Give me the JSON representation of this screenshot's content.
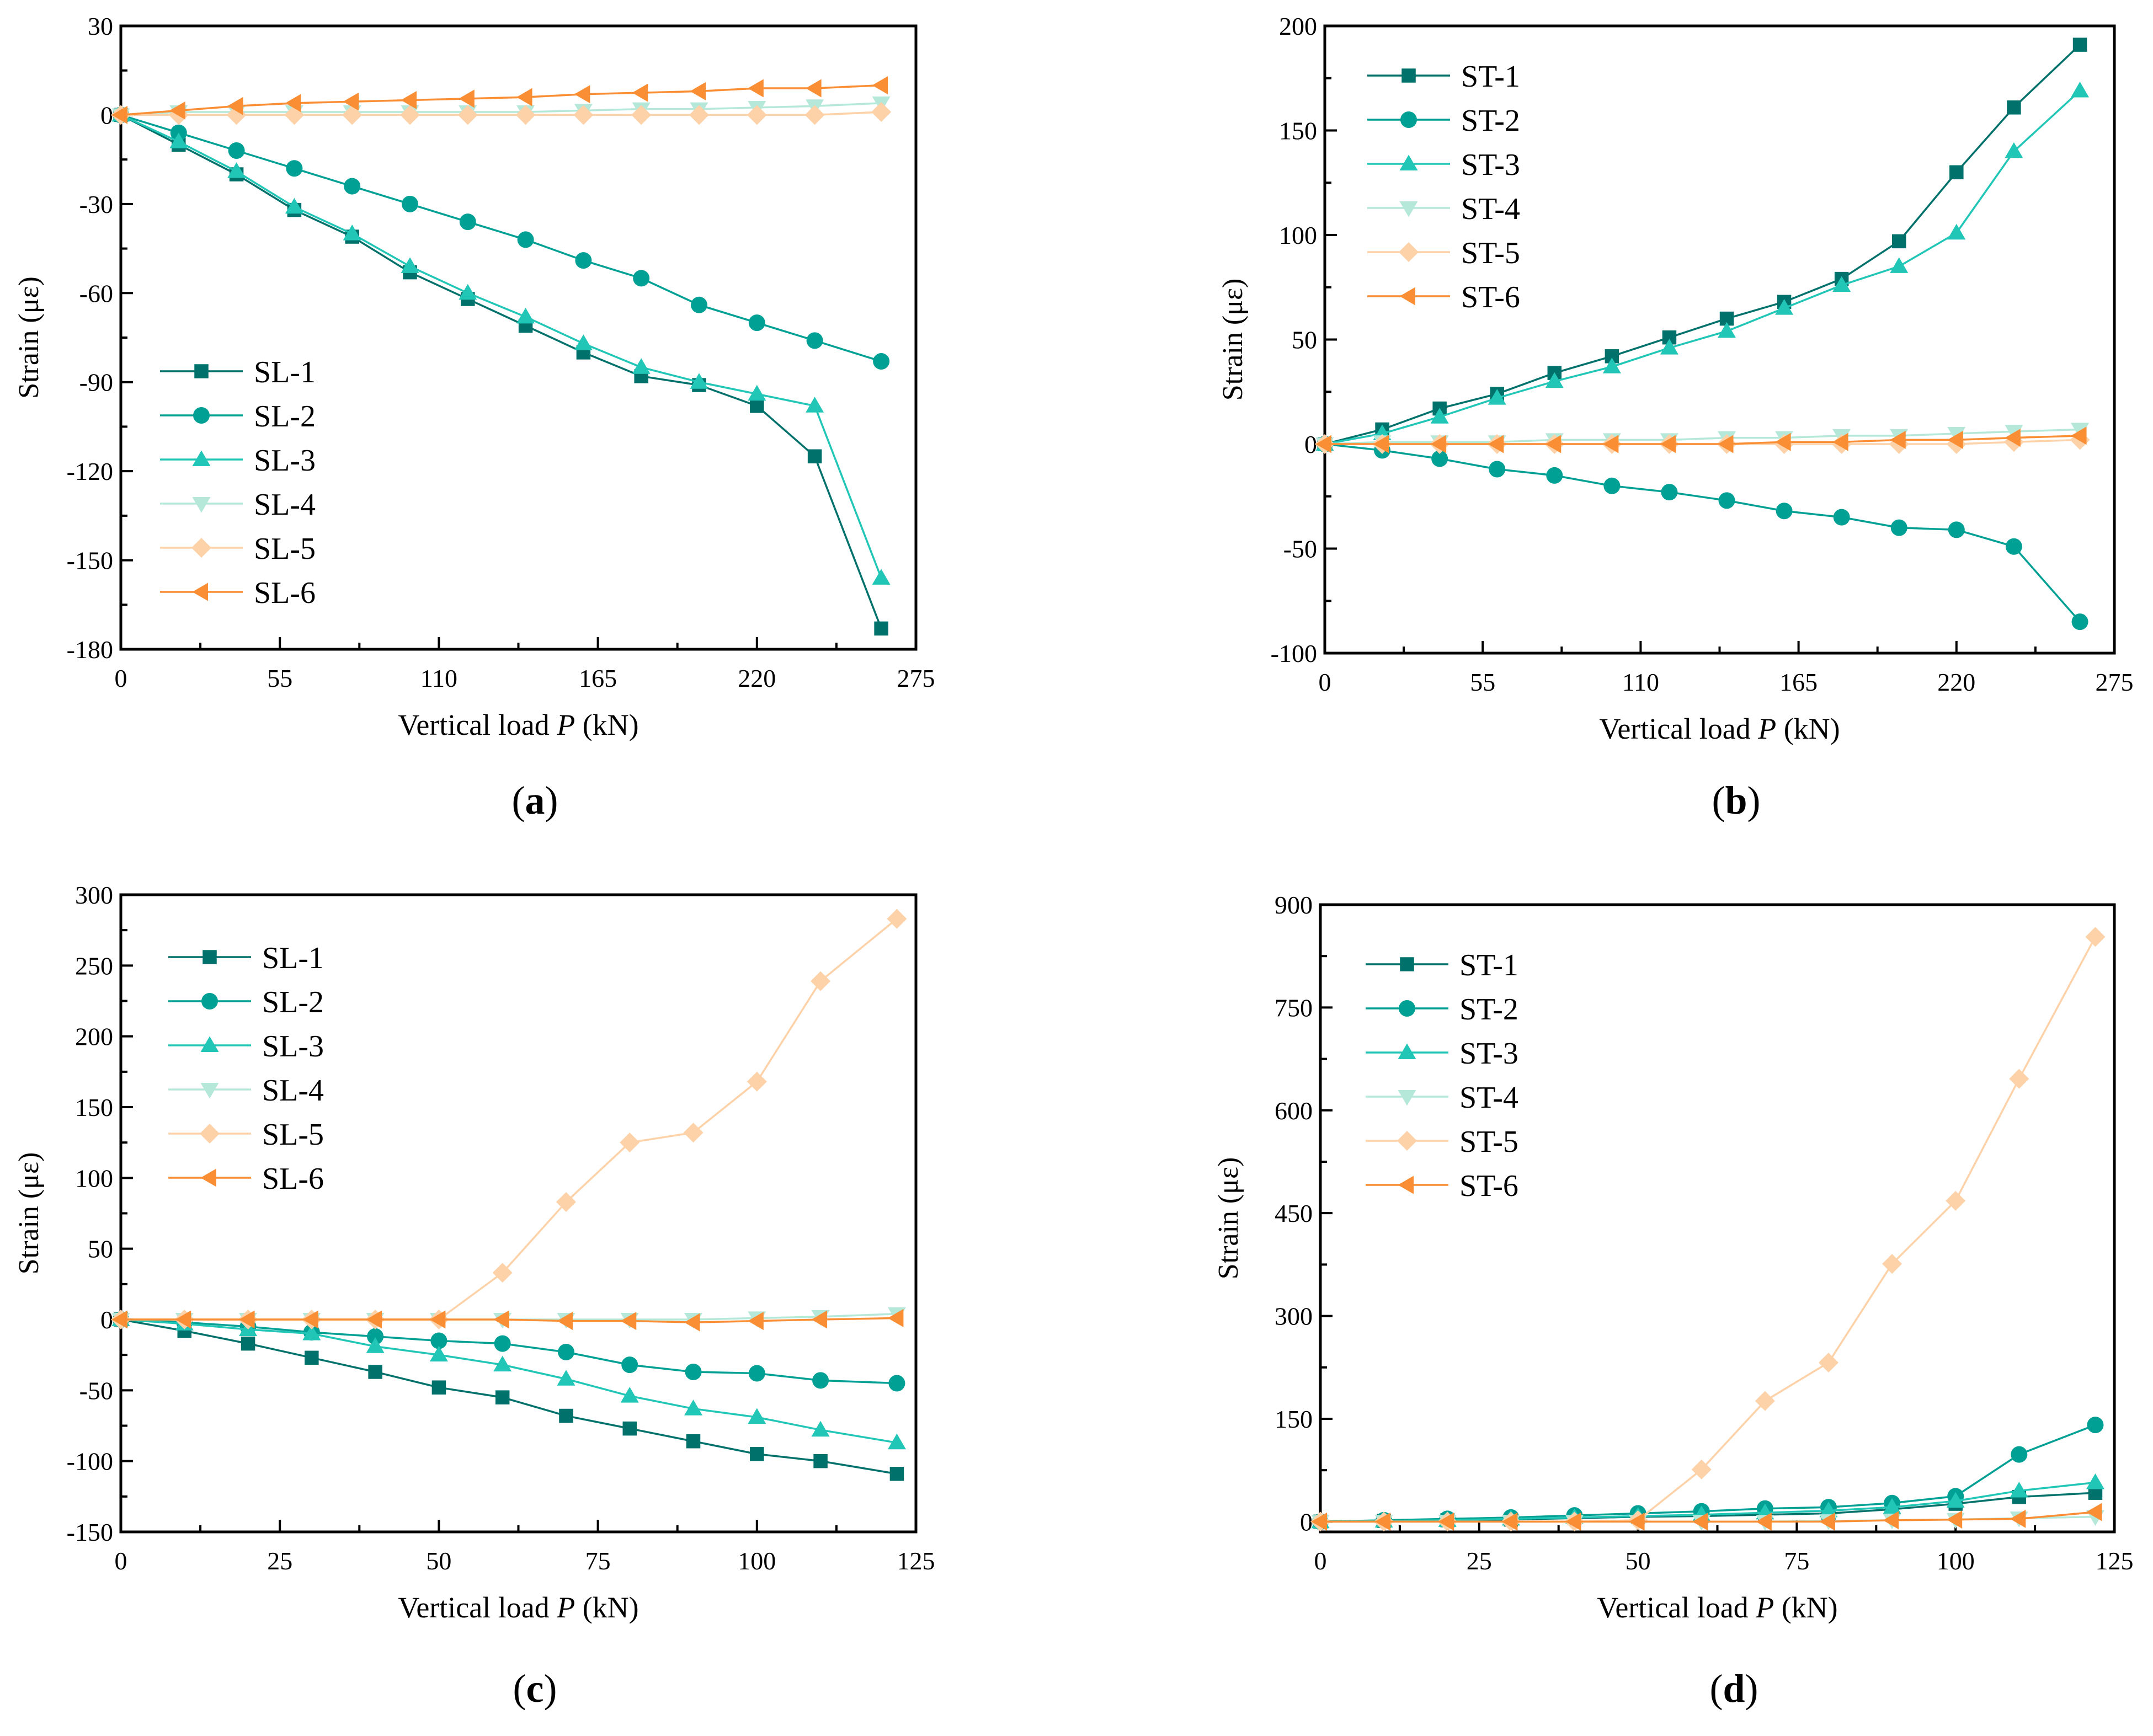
{
  "colors": {
    "s1": "#00716b",
    "s2": "#00a095",
    "s3": "#22c6b6",
    "s4": "#b6e8da",
    "s5": "#fdd2a8",
    "s6": "#f98e35"
  },
  "chart_data": [
    {
      "type": "line",
      "panel_label": "(a)",
      "panel_letter": "a",
      "xlabel_pre": "Vertical load ",
      "xlabel_var": "P",
      "xlabel_post": " (kN)",
      "ylabel": "Strain (με)",
      "xlim": [
        0,
        275
      ],
      "ylim": [
        -180,
        30
      ],
      "xticks": [
        0,
        55,
        110,
        165,
        220,
        275
      ],
      "yticks": [
        -180,
        -150,
        -120,
        -90,
        -60,
        -30,
        0,
        30
      ],
      "legend_position": "lower-left",
      "x": [
        0,
        20,
        40,
        60,
        80,
        100,
        120,
        140,
        160,
        180,
        200,
        220,
        240,
        263
      ],
      "series": [
        {
          "name": "SL-1",
          "marker": "square",
          "values": [
            0,
            -10,
            -20,
            -32,
            -41,
            -53,
            -62,
            -71,
            -80,
            -88,
            -91,
            -98,
            -115,
            -173
          ]
        },
        {
          "name": "SL-2",
          "marker": "circle",
          "values": [
            0,
            -6,
            -12,
            -18,
            -24,
            -30,
            -36,
            -42,
            -49,
            -55,
            -64,
            -70,
            -76,
            -83
          ]
        },
        {
          "name": "SL-3",
          "marker": "triangle-up",
          "values": [
            0,
            -9,
            -19,
            -31,
            -40,
            -51,
            -60,
            -68,
            -77,
            -85,
            -90,
            -94,
            -98,
            -156
          ]
        },
        {
          "name": "SL-4",
          "marker": "triangle-down",
          "values": [
            0,
            1,
            1,
            1,
            1,
            1,
            1,
            1,
            1.5,
            2,
            2,
            2.5,
            3,
            4
          ]
        },
        {
          "name": "SL-5",
          "marker": "diamond",
          "values": [
            0,
            0,
            0,
            0,
            0,
            0,
            0,
            0,
            0,
            0,
            0,
            0,
            0,
            1
          ]
        },
        {
          "name": "SL-6",
          "marker": "triangle-left",
          "values": [
            0,
            1.5,
            3,
            4,
            4.5,
            5,
            5.5,
            6,
            7,
            7.5,
            8,
            9,
            9,
            10
          ]
        }
      ]
    },
    {
      "type": "line",
      "panel_label": "(b)",
      "panel_letter": "b",
      "xlabel_pre": "Vertical load ",
      "xlabel_var": "P",
      "xlabel_post": " (kN)",
      "ylabel": "Strain (με)",
      "xlim": [
        0,
        275
      ],
      "ylim": [
        -100,
        200
      ],
      "xticks": [
        0,
        55,
        110,
        165,
        220,
        275
      ],
      "yticks": [
        -100,
        -50,
        0,
        50,
        100,
        150,
        200
      ],
      "legend_position": "upper-left",
      "x": [
        0,
        20,
        40,
        60,
        80,
        100,
        120,
        140,
        160,
        180,
        200,
        220,
        240,
        263
      ],
      "series": [
        {
          "name": "ST-1",
          "marker": "square",
          "values": [
            0,
            7,
            17,
            24,
            34,
            42,
            51,
            60,
            68,
            79,
            97,
            130,
            161,
            191
          ]
        },
        {
          "name": "ST-2",
          "marker": "circle",
          "values": [
            0,
            -3,
            -7,
            -12,
            -15,
            -20,
            -23,
            -27,
            -32,
            -35,
            -40,
            -41,
            -49,
            -85
          ]
        },
        {
          "name": "ST-3",
          "marker": "triangle-up",
          "values": [
            0,
            5,
            13,
            22,
            30,
            37,
            46,
            54,
            65,
            76,
            85,
            101,
            140,
            169
          ]
        },
        {
          "name": "ST-4",
          "marker": "triangle-down",
          "values": [
            0,
            1,
            1,
            1,
            2,
            2,
            2,
            3,
            3,
            4,
            4,
            5,
            6,
            7
          ]
        },
        {
          "name": "ST-5",
          "marker": "diamond",
          "values": [
            0,
            0,
            0,
            0,
            0,
            0,
            0,
            0,
            0,
            0,
            0,
            0,
            1,
            2
          ]
        },
        {
          "name": "ST-6",
          "marker": "triangle-left",
          "values": [
            0,
            0,
            0,
            0,
            0,
            0,
            0,
            0,
            1,
            1,
            2,
            2,
            3,
            4
          ]
        }
      ]
    },
    {
      "type": "line",
      "panel_label": "(c)",
      "panel_letter": "c",
      "xlabel_pre": "Vertical load ",
      "xlabel_var": "P",
      "xlabel_post": " (kN)",
      "ylabel": "Strain (με)",
      "xlim": [
        0,
        125
      ],
      "ylim": [
        -150,
        300
      ],
      "xticks": [
        0,
        25,
        50,
        75,
        100,
        125
      ],
      "yticks": [
        -150,
        -100,
        -50,
        0,
        50,
        100,
        150,
        200,
        250,
        300
      ],
      "legend_position": "upper-left",
      "x": [
        0,
        10,
        20,
        30,
        40,
        50,
        60,
        70,
        80,
        90,
        100,
        110,
        122
      ],
      "series": [
        {
          "name": "SL-1",
          "marker": "square",
          "values": [
            0,
            -8,
            -17,
            -27,
            -37,
            -48,
            -55,
            -68,
            -77,
            -86,
            -95,
            -100,
            -109
          ]
        },
        {
          "name": "SL-2",
          "marker": "circle",
          "values": [
            0,
            -2,
            -5,
            -9,
            -12,
            -15,
            -17,
            -23,
            -32,
            -37,
            -38,
            -43,
            -45
          ]
        },
        {
          "name": "SL-3",
          "marker": "triangle-up",
          "values": [
            0,
            -3,
            -7,
            -10,
            -19,
            -25,
            -32,
            -42,
            -54,
            -63,
            -69,
            -78,
            -87
          ]
        },
        {
          "name": "SL-4",
          "marker": "triangle-down",
          "values": [
            0,
            0,
            0,
            0,
            0,
            0,
            0,
            0,
            0,
            0,
            1,
            2,
            4
          ]
        },
        {
          "name": "SL-5",
          "marker": "diamond",
          "values": [
            0,
            0,
            0,
            0,
            0,
            0,
            33,
            83,
            125,
            132,
            168,
            239,
            283
          ]
        },
        {
          "name": "SL-6",
          "marker": "triangle-left",
          "values": [
            0,
            0,
            0,
            0,
            0,
            0,
            0,
            -1,
            -1,
            -2,
            -1,
            0,
            1
          ]
        }
      ]
    },
    {
      "type": "line",
      "panel_label": "(d)",
      "panel_letter": "d",
      "xlabel_pre": "Vertical load ",
      "xlabel_var": "P",
      "xlabel_post": " (kN)",
      "ylabel": "Strain (με)",
      "xlim": [
        0,
        125
      ],
      "ylim": [
        -15,
        900
      ],
      "xticks": [
        0,
        25,
        50,
        75,
        100,
        125
      ],
      "yticks": [
        0,
        150,
        300,
        450,
        600,
        750,
        900
      ],
      "legend_position": "upper-left",
      "x": [
        0,
        10,
        20,
        30,
        40,
        50,
        60,
        70,
        80,
        90,
        100,
        110,
        122
      ],
      "series": [
        {
          "name": "ST-1",
          "marker": "square",
          "values": [
            0,
            1,
            2,
            3,
            5,
            7,
            8,
            10,
            12,
            18,
            26,
            36,
            42
          ]
        },
        {
          "name": "ST-2",
          "marker": "circle",
          "values": [
            0,
            2,
            4,
            6,
            9,
            12,
            15,
            19,
            21,
            27,
            37,
            98,
            141
          ]
        },
        {
          "name": "ST-3",
          "marker": "triangle-up",
          "values": [
            0,
            1,
            2,
            4,
            6,
            8,
            10,
            13,
            16,
            21,
            30,
            45,
            57
          ]
        },
        {
          "name": "ST-4",
          "marker": "triangle-down",
          "values": [
            0,
            0,
            0,
            0,
            0,
            0,
            0,
            0,
            1,
            2,
            3,
            5,
            7
          ]
        },
        {
          "name": "ST-5",
          "marker": "diamond",
          "values": [
            0,
            0,
            0,
            0,
            0,
            2,
            76,
            176,
            232,
            376,
            468,
            646,
            853
          ]
        },
        {
          "name": "ST-6",
          "marker": "triangle-left",
          "values": [
            0,
            0,
            0,
            0,
            0,
            0,
            0,
            0,
            0,
            2,
            3,
            4,
            14
          ]
        }
      ]
    }
  ]
}
